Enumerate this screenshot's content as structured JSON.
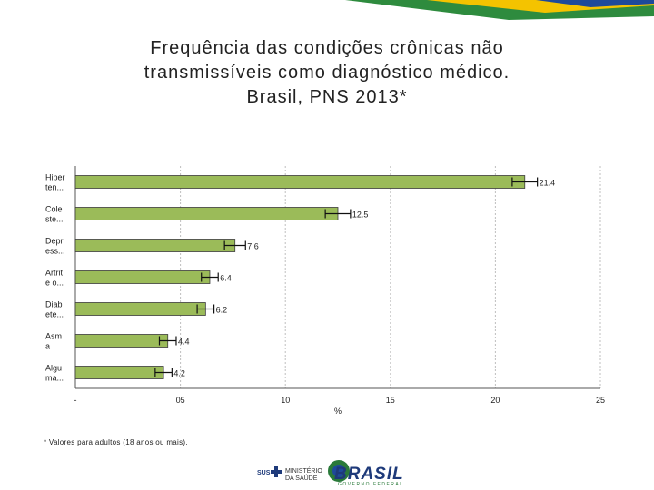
{
  "title_lines": [
    "Frequência das condições crônicas não",
    "transmissíveis como diagnóstico médico.",
    "Brasil, PNS 2013*"
  ],
  "footnote": "* Valores para adultos (18 anos ou mais).",
  "logos": {
    "sus": "SUS",
    "ministerio": "MINISTÉRIO DA SAÚDE",
    "brasil": "BRASIL",
    "brasil_sub": "GOVERNO FEDERAL"
  },
  "colors": {
    "bar_fill": "#9bbb59",
    "bar_stroke": "#3b3b3b",
    "grid": "#bfbfbf",
    "deco_green": "#2e8b3e",
    "deco_yellow": "#f4c300",
    "deco_blue": "#1e4a9a"
  },
  "chart_data": {
    "type": "bar",
    "orientation": "horizontal",
    "categories": [
      "Hiper ten...",
      "Cole ste...",
      "Depr ess...",
      "Artrit e o...",
      "Diab ete...",
      "Asm a",
      "Algu ma..."
    ],
    "values": [
      21.4,
      12.5,
      7.6,
      6.4,
      6.2,
      4.4,
      4.2
    ],
    "value_labels": [
      "21.4",
      "12.5",
      "7.6",
      "6.4",
      "6.2",
      "4.4",
      "4.2"
    ],
    "error_low": [
      20.8,
      11.9,
      7.1,
      6.0,
      5.8,
      4.0,
      3.8
    ],
    "error_high": [
      22.0,
      13.1,
      8.1,
      6.8,
      6.6,
      4.8,
      4.6
    ],
    "xlim": [
      0,
      25
    ],
    "xticks": [
      0,
      5,
      10,
      15,
      20,
      25
    ],
    "xtick_labels": [
      "-",
      "05",
      "10",
      "15",
      "20",
      "25"
    ],
    "xlabel": "%",
    "ylabel": "",
    "grid": true
  }
}
